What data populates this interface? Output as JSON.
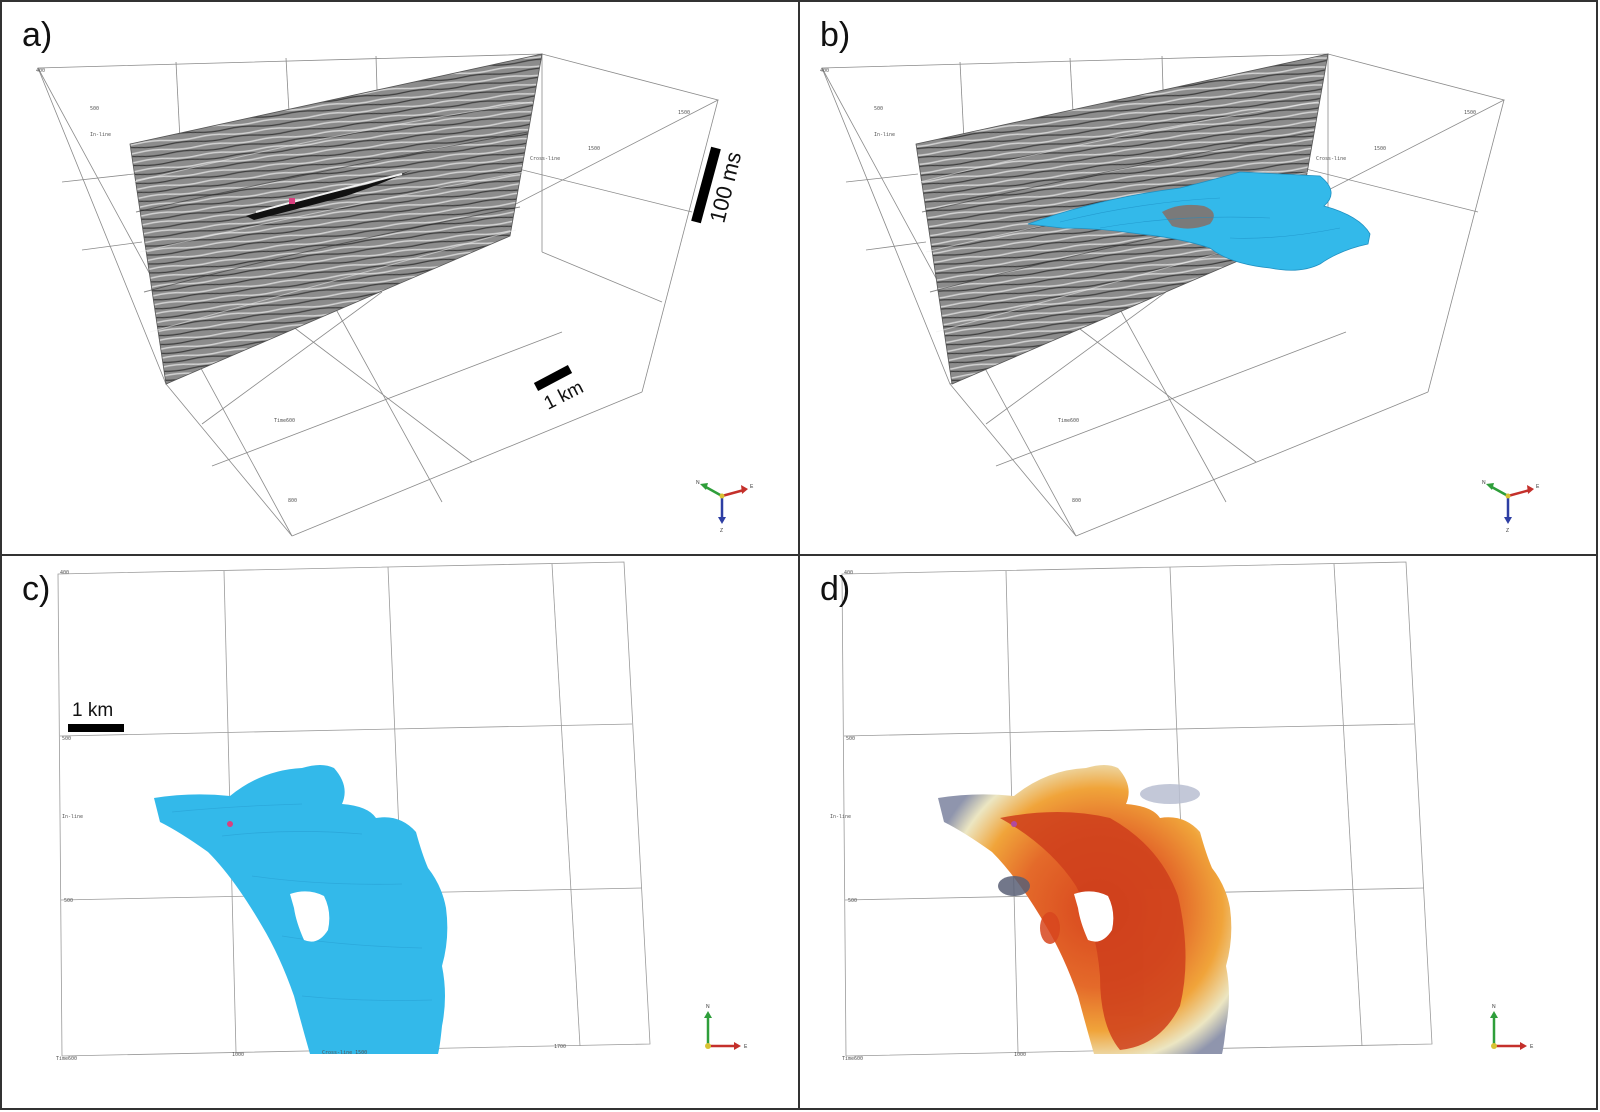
{
  "panels": {
    "a": {
      "label": "a)"
    },
    "b": {
      "label": "b)"
    },
    "c": {
      "label": "c)"
    },
    "d": {
      "label": "d)"
    }
  },
  "scale_bars": {
    "time": "100 ms",
    "distance_3d": "1 km",
    "distance_map": "1 km"
  },
  "volume_annotations": {
    "corner_top": "400",
    "inline_top": "500",
    "inline_axis": "In-line",
    "crossline_top": "1500",
    "crossline_axis": "Cross-line",
    "crossline_mid": "1500",
    "time_axis": "Time600",
    "time_low": "800"
  },
  "map_annotations": {
    "corner_top": "400",
    "inline_500": "500",
    "inline_axis": "In-line",
    "inline_700": "500",
    "time_label": "Time600",
    "crossline_1000": "1000",
    "crossline_axis": "Cross-line 1500",
    "crossline_1700": "1700"
  },
  "compass": {
    "north": "N",
    "east": "E",
    "down": "Z"
  },
  "colors": {
    "horizon_fill": "#33b9ea",
    "seed_point": "#d9407f",
    "seismic_gray": "#8a8a8a",
    "attribute_high": "#d8461e",
    "attribute_mid": "#f0a43a",
    "attribute_low": "#ece6c2",
    "attribute_min": "#8f95ad"
  }
}
